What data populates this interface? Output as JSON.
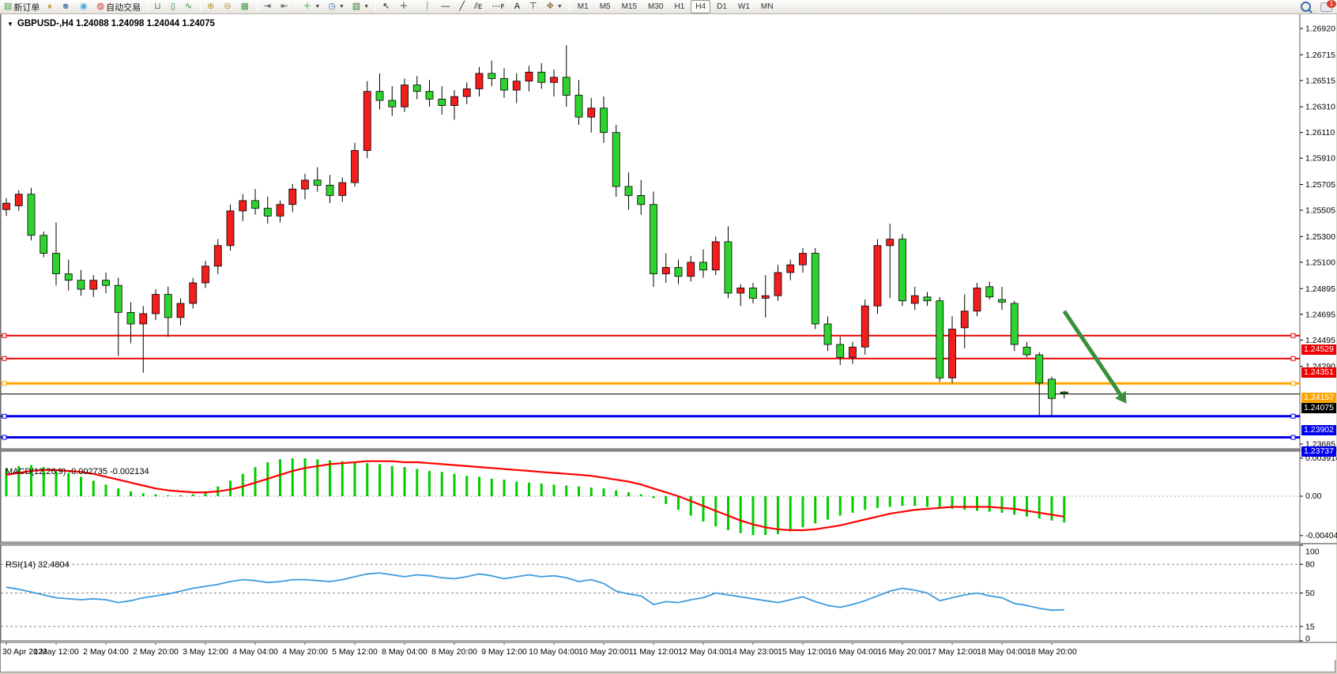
{
  "toolbar": {
    "new_order_label": "新订单",
    "auto_trading_label": "自动交易",
    "left_icons": [
      {
        "name": "new-order-icon",
        "glyph": "▤",
        "color": "#3f9e3f",
        "with_label": "new_order_label"
      },
      {
        "name": "paint-bucket-icon",
        "glyph": "⬧",
        "color": "#c9a227"
      },
      {
        "name": "profile-icon",
        "glyph": "☻",
        "color": "#5b82b5"
      },
      {
        "name": "signal-icon",
        "glyph": "◉",
        "color": "#4aa3d8"
      },
      {
        "name": "auto-trading-icon",
        "glyph": "◍",
        "color": "#cc3333",
        "with_label": "auto_trading_label"
      },
      {
        "name": "sep"
      },
      {
        "name": "bar-chart-icon",
        "glyph": "⊔",
        "color": "#35813a"
      },
      {
        "name": "candlestick-chart-icon",
        "glyph": "▯",
        "color": "#35813a"
      },
      {
        "name": "line-chart-icon",
        "glyph": "∿",
        "color": "#35813a"
      },
      {
        "name": "sep"
      },
      {
        "name": "zoom-in-icon",
        "glyph": "⊕",
        "color": "#b8962e"
      },
      {
        "name": "zoom-out-icon",
        "glyph": "⊖",
        "color": "#b8962e"
      },
      {
        "name": "tile-windows-icon",
        "glyph": "▦",
        "color": "#3f9e3f"
      },
      {
        "name": "sep"
      },
      {
        "name": "auto-scroll-icon",
        "glyph": "⇥",
        "color": "#444"
      },
      {
        "name": "chart-shift-icon",
        "glyph": "⇤",
        "color": "#444"
      },
      {
        "name": "sep"
      },
      {
        "name": "indicators-icon",
        "glyph": "＋",
        "color": "#2f9e2f",
        "dropdown": true
      },
      {
        "name": "periods-icon",
        "glyph": "◷",
        "color": "#3a6ea5",
        "dropdown": true
      },
      {
        "name": "templates-icon",
        "glyph": "▨",
        "color": "#35813a",
        "dropdown": true
      },
      {
        "name": "sep"
      },
      {
        "name": "cursor-icon",
        "glyph": "↖",
        "color": "#222"
      },
      {
        "name": "crosshair-icon",
        "glyph": "＋",
        "color": "#222"
      },
      {
        "name": "sep"
      },
      {
        "name": "vertical-line-icon",
        "glyph": "｜",
        "color": "#222"
      },
      {
        "name": "horizontal-line-icon",
        "glyph": "—",
        "color": "#222"
      },
      {
        "name": "trendline-icon",
        "glyph": "╱",
        "color": "#222"
      },
      {
        "name": "equidistant-channel-icon",
        "glyph": "⫽ᴇ",
        "color": "#222"
      },
      {
        "name": "fibonacci-icon",
        "glyph": "⋯ꜰ",
        "color": "#222"
      },
      {
        "name": "text-icon",
        "glyph": "A",
        "color": "#222"
      },
      {
        "name": "text-label-icon",
        "glyph": "⊤",
        "color": "#222"
      },
      {
        "name": "arrows-icon",
        "glyph": "✥",
        "color": "#8a6d2f",
        "dropdown": true
      },
      {
        "name": "sep"
      }
    ],
    "timeframes": [
      "M1",
      "M5",
      "M15",
      "M30",
      "H1",
      "H4",
      "D1",
      "W1",
      "MN"
    ],
    "active_timeframe": "H4",
    "chat_badge": "1"
  },
  "chart": {
    "title_line": "GBPUSD-,H4  1.24088 1.24098 1.24044 1.24075",
    "symbol": "GBPUSD-",
    "timeframe": "H4",
    "open": "1.24088",
    "high": "1.24098",
    "low": "1.24044",
    "close": "1.24075"
  },
  "indicator_labels": {
    "macd": "MACD(12,26,9) -0.002735 -0.002134",
    "rsi": "RSI(14) 32.4804"
  },
  "levels": [
    {
      "label": "1.24529",
      "price": 1.24529,
      "color": "#ee0000",
      "width": 2,
      "name": "resistance-line-1"
    },
    {
      "label": "1.24351",
      "price": 1.24351,
      "color": "#ee0000",
      "width": 2,
      "name": "resistance-line-2"
    },
    {
      "label": "1.24157",
      "price": 1.24157,
      "color": "#ffa500",
      "width": 3,
      "name": "support-line-gold"
    },
    {
      "label": "1.24075",
      "price": 1.24075,
      "color": "#000000",
      "width": 1,
      "name": "current-price-line",
      "current": true
    },
    {
      "label": "1.23902",
      "price": 1.23902,
      "color": "#0000ee",
      "width": 3,
      "name": "support-line-blue-1"
    },
    {
      "label": "1.23737",
      "price": 1.23737,
      "color": "#0000ee",
      "width": 3,
      "name": "support-line-blue-2"
    }
  ],
  "price_axis_ticks": [
    "1.26920",
    "1.26715",
    "1.26515",
    "1.26310",
    "1.26110",
    "1.25910",
    "1.25705",
    "1.25505",
    "1.25300",
    "1.25100",
    "1.24895",
    "1.24695",
    "1.24495",
    "1.24290",
    "1.23685"
  ],
  "macd_axis_ticks": [
    "0.003914",
    "0.00",
    "-0.004049"
  ],
  "rsi_axis_ticks": [
    "100",
    "80",
    "50",
    "15",
    "0"
  ],
  "time_labels": [
    "30 Apr 2023",
    "1 May 12:00",
    "2 May 04:00",
    "2 May 20:00",
    "3 May 12:00",
    "4 May 04:00",
    "4 May 20:00",
    "5 May 12:00",
    "8 May 04:00",
    "8 May 20:00",
    "9 May 12:00",
    "10 May 04:00",
    "10 May 20:00",
    "11 May 12:00",
    "12 May 04:00",
    "14 May 23:00",
    "15 May 12:00",
    "16 May 04:00",
    "16 May 20:00",
    "17 May 12:00",
    "18 May 04:00",
    "18 May 20:00"
  ],
  "annotation_arrow": {
    "from_index": 85,
    "from_price": 1.2472,
    "to_index": 90,
    "to_price": 1.24,
    "color": "#3a8f3a"
  },
  "shift_marker_index": 83,
  "colors": {
    "bull_candle": "#f21d1d",
    "bear_candle": "#2ed42e",
    "candle_outline": "#000000",
    "macd_histogram": "#00cc00",
    "macd_signal": "#ff0000",
    "rsi_line": "#3e9bde",
    "background": "#ffffff",
    "axis_text": "#000000"
  },
  "chart_data": [
    {
      "type": "candlestick",
      "title": "GBPUSD- H4",
      "note": "red = bullish (close>open), green = bearish; values are [open,high,low,close] x 10^-4",
      "ylim": [
        1.2365,
        1.2712
      ],
      "scale": 0.0001,
      "candles": [
        [
          12551,
          12560,
          12546,
          12556
        ],
        [
          12554,
          12566,
          12550,
          12563
        ],
        [
          12563,
          12568,
          12527,
          12531
        ],
        [
          12531,
          12534,
          12514,
          12517
        ],
        [
          12517,
          12541,
          12492,
          12501
        ],
        [
          12501,
          12512,
          12488,
          12496
        ],
        [
          12496,
          12504,
          12484,
          12489
        ],
        [
          12489,
          12500,
          12483,
          12496
        ],
        [
          12496,
          12502,
          12486,
          12492
        ],
        [
          12492,
          12498,
          12437,
          12471
        ],
        [
          12471,
          12479,
          12447,
          12462
        ],
        [
          12462,
          12476,
          12424,
          12470
        ],
        [
          12470,
          12489,
          12465,
          12485
        ],
        [
          12485,
          12491,
          12452,
          12467
        ],
        [
          12467,
          12482,
          12461,
          12478
        ],
        [
          12478,
          12498,
          12474,
          12494
        ],
        [
          12494,
          12511,
          12490,
          12507
        ],
        [
          12507,
          12528,
          12501,
          12523
        ],
        [
          12523,
          12555,
          12519,
          12550
        ],
        [
          12550,
          12563,
          12542,
          12558
        ],
        [
          12558,
          12567,
          12547,
          12552
        ],
        [
          12552,
          12561,
          12540,
          12546
        ],
        [
          12546,
          12558,
          12541,
          12555
        ],
        [
          12555,
          12571,
          12549,
          12567
        ],
        [
          12567,
          12579,
          12559,
          12574
        ],
        [
          12574,
          12584,
          12565,
          12570
        ],
        [
          12570,
          12578,
          12556,
          12562
        ],
        [
          12562,
          12576,
          12557,
          12572
        ],
        [
          12572,
          12603,
          12569,
          12597
        ],
        [
          12597,
          12651,
          12591,
          12643
        ],
        [
          12643,
          12657,
          12629,
          12636
        ],
        [
          12636,
          12647,
          12624,
          12631
        ],
        [
          12631,
          12653,
          12627,
          12648
        ],
        [
          12648,
          12655,
          12637,
          12643
        ],
        [
          12643,
          12652,
          12631,
          12637
        ],
        [
          12637,
          12647,
          12625,
          12632
        ],
        [
          12632,
          12644,
          12621,
          12639
        ],
        [
          12639,
          12650,
          12633,
          12645
        ],
        [
          12645,
          12662,
          12639,
          12657
        ],
        [
          12657,
          12667,
          12647,
          12653
        ],
        [
          12653,
          12661,
          12638,
          12644
        ],
        [
          12644,
          12657,
          12634,
          12651
        ],
        [
          12651,
          12663,
          12643,
          12658
        ],
        [
          12658,
          12665,
          12645,
          12650
        ],
        [
          12650,
          12660,
          12639,
          12654
        ],
        [
          12654,
          12679,
          12631,
          12640
        ],
        [
          12640,
          12652,
          12617,
          12623
        ],
        [
          12623,
          12638,
          12611,
          12630
        ],
        [
          12630,
          12639,
          12603,
          12611
        ],
        [
          12611,
          12617,
          12561,
          12569
        ],
        [
          12569,
          12580,
          12551,
          12562
        ],
        [
          12562,
          12574,
          12547,
          12555
        ],
        [
          12555,
          12565,
          12491,
          12501
        ],
        [
          12501,
          12517,
          12494,
          12506
        ],
        [
          12506,
          12512,
          12493,
          12499
        ],
        [
          12499,
          12515,
          12495,
          12510
        ],
        [
          12510,
          12520,
          12498,
          12504
        ],
        [
          12504,
          12530,
          12500,
          12526
        ],
        [
          12526,
          12538,
          12482,
          12486
        ],
        [
          12486,
          12493,
          12476,
          12490
        ],
        [
          12490,
          12494,
          12478,
          12482
        ],
        [
          12482,
          12500,
          12467,
          12484
        ],
        [
          12484,
          12508,
          12480,
          12502
        ],
        [
          12502,
          12512,
          12496,
          12508
        ],
        [
          12508,
          12521,
          12502,
          12517
        ],
        [
          12517,
          12521,
          12458,
          12462
        ],
        [
          12462,
          12468,
          12441,
          12446
        ],
        [
          12446,
          12452,
          12430,
          12436
        ],
        [
          12436,
          12448,
          12431,
          12444
        ],
        [
          12444,
          12481,
          12438,
          12476
        ],
        [
          12476,
          12528,
          12470,
          12523
        ],
        [
          12523,
          12540,
          12482,
          12528
        ],
        [
          12528,
          12532,
          12476,
          12480
        ],
        [
          12478,
          12491,
          12473,
          12484
        ],
        [
          12483,
          12487,
          12476,
          12480
        ],
        [
          12480,
          12483,
          12417,
          12420
        ],
        [
          12420,
          12468,
          12416,
          12458
        ],
        [
          12459,
          12485,
          12443,
          12472
        ],
        [
          12472,
          12494,
          12468,
          12490
        ],
        [
          12491,
          12495,
          12481,
          12483
        ],
        [
          12481,
          12491,
          12473,
          12479
        ],
        [
          12478,
          12480,
          12441,
          12446
        ],
        [
          12444,
          12448,
          12436,
          12438
        ],
        [
          12438,
          12440,
          12391,
          12416
        ],
        [
          12419,
          12421,
          12390,
          12404
        ],
        [
          12409,
          12410,
          12404,
          12408
        ]
      ]
    },
    {
      "type": "bar",
      "name": "MACD",
      "settings": "12,26,9",
      "current_value": -0.002735,
      "current_signal": -0.002134,
      "ylim": [
        -0.004049,
        0.003914
      ],
      "scale": 0.0001,
      "histogram": [
        29,
        31,
        32,
        30,
        27,
        24,
        20,
        16,
        12,
        8,
        5,
        3,
        2,
        1,
        1,
        2,
        5,
        10,
        16,
        23,
        30,
        35,
        38,
        39,
        39,
        38,
        37,
        36,
        35,
        34,
        33,
        31,
        30,
        28,
        26,
        25,
        23,
        21,
        20,
        18,
        17,
        15,
        14,
        13,
        12,
        11,
        10,
        9,
        8,
        6,
        4,
        2,
        -2,
        -8,
        -14,
        -20,
        -26,
        -31,
        -35,
        -38,
        -40,
        -40,
        -39,
        -36,
        -32,
        -28,
        -24,
        -20,
        -17,
        -14,
        -12,
        -11,
        -10,
        -10,
        -11,
        -12,
        -13,
        -14,
        -15,
        -16,
        -17,
        -19,
        -21,
        -23,
        -25,
        -27
      ],
      "signal": [
        22,
        24,
        26,
        27,
        27,
        26,
        25,
        23,
        20,
        17,
        14,
        11,
        8,
        6,
        5,
        4,
        4,
        5,
        7,
        10,
        14,
        18,
        22,
        26,
        29,
        31,
        33,
        34,
        35,
        36,
        36,
        36,
        35,
        35,
        34,
        33,
        32,
        31,
        30,
        29,
        28,
        27,
        26,
        25,
        24,
        23,
        22,
        21,
        19,
        17,
        15,
        12,
        8,
        4,
        0,
        -5,
        -10,
        -15,
        -20,
        -25,
        -29,
        -32,
        -34,
        -35,
        -35,
        -34,
        -32,
        -30,
        -27,
        -24,
        -21,
        -18,
        -16,
        -14,
        -13,
        -12,
        -11,
        -11,
        -11,
        -11,
        -12,
        -13,
        -15,
        -17,
        -19,
        -21
      ]
    },
    {
      "type": "line",
      "name": "RSI",
      "settings": "14",
      "current_value": 32.4804,
      "ylim": [
        0,
        100
      ],
      "levels": [
        80,
        50,
        15
      ],
      "values": [
        56,
        54,
        51,
        48,
        45,
        44,
        43,
        44,
        43,
        40,
        42,
        45,
        47,
        49,
        52,
        55,
        57,
        59,
        62,
        64,
        63,
        61,
        62,
        64,
        64,
        63,
        62,
        64,
        67,
        70,
        71,
        69,
        67,
        69,
        68,
        66,
        65,
        67,
        70,
        68,
        65,
        67,
        69,
        67,
        68,
        66,
        62,
        64,
        60,
        52,
        49,
        47,
        38,
        41,
        40,
        43,
        45,
        50,
        48,
        46,
        44,
        42,
        40,
        43,
        46,
        41,
        37,
        35,
        38,
        42,
        47,
        52,
        55,
        53,
        50,
        42,
        45,
        48,
        50,
        47,
        45,
        39,
        37,
        34,
        32,
        32.5
      ]
    }
  ]
}
